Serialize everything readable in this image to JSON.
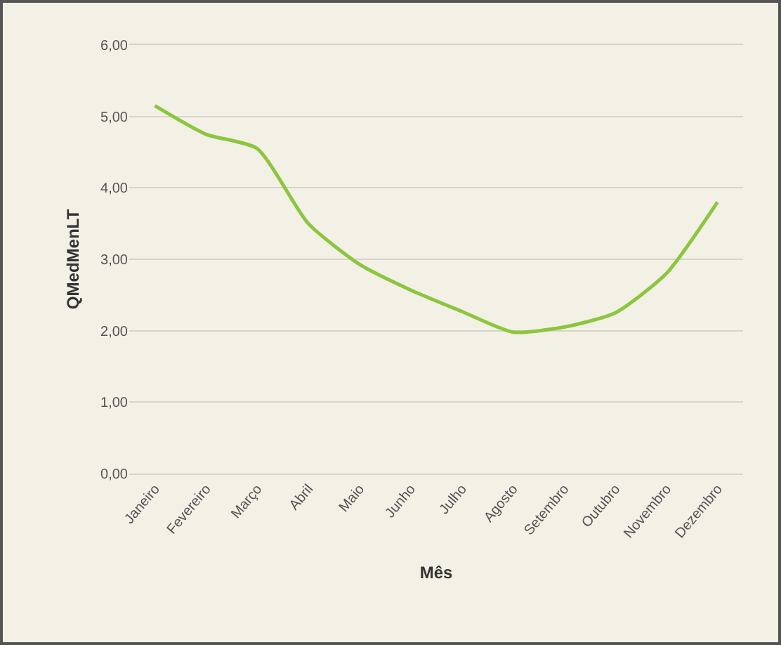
{
  "chart_data": {
    "type": "line",
    "xlabel": "Mês",
    "ylabel": "QMedMenLT",
    "categories": [
      "Janeiro",
      "Fevereiro",
      "Março",
      "Abril",
      "Maio",
      "Junho",
      "Julho",
      "Agosto",
      "Setembro",
      "Outubro",
      "Novembro",
      "Dezembro"
    ],
    "series": [
      {
        "color": "#8cc63f",
        "values": [
          5.15,
          4.75,
          4.55,
          3.5,
          2.93,
          2.57,
          2.27,
          1.98,
          2.05,
          2.25,
          2.8,
          3.8
        ]
      }
    ],
    "ylim": [
      0,
      6
    ],
    "yticks": [
      {
        "value": 0,
        "label": "0,00"
      },
      {
        "value": 1,
        "label": "1,00"
      },
      {
        "value": 2,
        "label": "2,00"
      },
      {
        "value": 3,
        "label": "3,00"
      },
      {
        "value": 4,
        "label": "4,00"
      },
      {
        "value": 5,
        "label": "5,00"
      },
      {
        "value": 6,
        "label": "6,00"
      }
    ],
    "grid": "y",
    "marker": "none",
    "line_style": "solid"
  }
}
